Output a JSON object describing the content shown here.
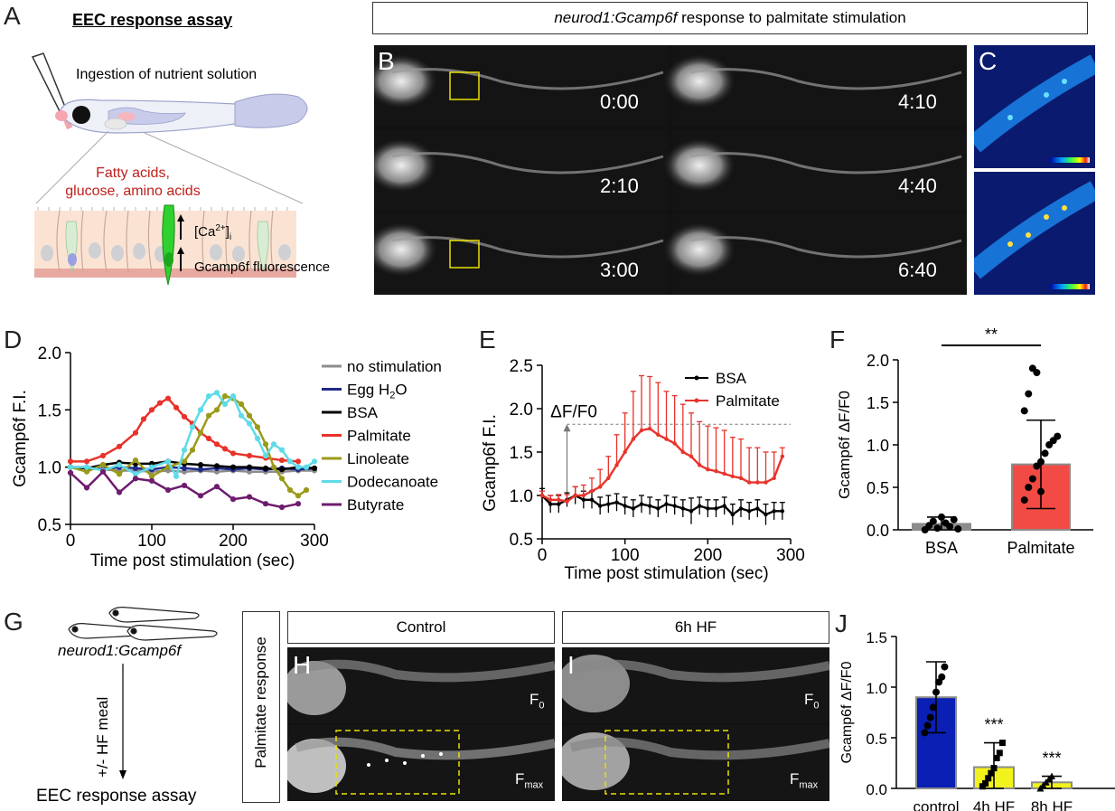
{
  "letters": {
    "a": "A",
    "b": "B",
    "c": "C",
    "d": "D",
    "e": "E",
    "f": "F",
    "g": "G",
    "h": "H",
    "i": "I",
    "j": "J"
  },
  "panelA": {
    "title": "EEC response assay",
    "ingestion": "Ingestion of nutrient solution",
    "nutrients_line1": "Fatty acids,",
    "nutrients_line2": "glucose, amino acids",
    "calcium": "[Ca",
    "calcium_sup": "2+",
    "calcium_end": "]",
    "calcium_sub": "i",
    "gcamp_fluor": "Gcamp6f fluorescence"
  },
  "panelB": {
    "header_italic": "neurod1:Gcamp6f",
    "header_rest": " response to palmitate stimulation",
    "times": [
      "0:00",
      "4:10",
      "2:10",
      "4:40",
      "3:00",
      "6:40"
    ]
  },
  "panelD": {
    "chart_data": {
      "type": "line",
      "xlabel": "Time post stimulation (sec)",
      "ylabel": "Gcamp6f  F.I.",
      "xlim": [
        0,
        300
      ],
      "ylim": [
        0.5,
        2.0
      ],
      "xticks": [
        0,
        100,
        200,
        300
      ],
      "yticks": [
        0.5,
        1.0,
        1.5,
        2.0
      ],
      "legend_position": "right",
      "series": [
        {
          "name": "no stimulation",
          "color": "#8c8c8c",
          "x": [
            0,
            20,
            40,
            60,
            80,
            100,
            120,
            140,
            160,
            180,
            200,
            220,
            240,
            260,
            280,
            300
          ],
          "y": [
            1.0,
            0.99,
            0.98,
            0.97,
            0.97,
            0.96,
            0.97,
            0.96,
            0.97,
            0.96,
            0.97,
            0.96,
            0.96,
            0.96,
            0.97,
            0.97
          ]
        },
        {
          "name": "Egg H2O",
          "color": "#1f2a8a",
          "x": [
            0,
            20,
            40,
            60,
            80,
            100,
            120,
            140,
            160,
            180,
            200,
            220,
            240,
            260,
            280,
            300
          ],
          "y": [
            1.0,
            1.0,
            0.98,
            1.0,
            0.99,
            0.98,
            1.0,
            0.99,
            0.98,
            0.99,
            0.98,
            0.99,
            0.98,
            0.99,
            0.98,
            0.99
          ]
        },
        {
          "name": "BSA",
          "color": "#000000",
          "x": [
            0,
            20,
            40,
            60,
            80,
            100,
            120,
            140,
            160,
            180,
            200,
            220,
            240,
            260,
            280,
            300
          ],
          "y": [
            1.0,
            0.99,
            1.02,
            1.04,
            1.03,
            1.03,
            1.05,
            1.03,
            1.02,
            1.01,
            1.0,
            1.0,
            0.99,
            0.98,
            1.0,
            0.99
          ]
        },
        {
          "name": "Palmitate",
          "color": "#e8332b",
          "x": [
            0,
            20,
            40,
            60,
            80,
            90,
            100,
            110,
            120,
            130,
            140,
            150,
            160,
            170,
            180,
            190,
            200,
            220,
            240,
            260,
            280
          ],
          "y": [
            1.05,
            1.05,
            1.1,
            1.18,
            1.3,
            1.42,
            1.5,
            1.56,
            1.6,
            1.52,
            1.44,
            1.38,
            1.3,
            1.25,
            1.2,
            1.16,
            1.12,
            1.1,
            1.08,
            1.06,
            1.05
          ]
        },
        {
          "name": "Linoleate",
          "color": "#9a9a1a",
          "x": [
            0,
            20,
            40,
            60,
            80,
            100,
            120,
            140,
            150,
            160,
            170,
            180,
            190,
            200,
            210,
            220,
            230,
            240,
            250,
            260,
            270,
            280,
            290
          ],
          "y": [
            1.0,
            0.96,
            1.02,
            0.94,
            1.06,
            0.92,
            1.0,
            1.05,
            1.15,
            1.3,
            1.45,
            1.5,
            1.62,
            1.6,
            1.55,
            1.45,
            1.35,
            1.2,
            1.0,
            0.9,
            0.8,
            0.75,
            0.8
          ]
        },
        {
          "name": "Dodecanoate",
          "color": "#5fdbe8",
          "x": [
            0,
            20,
            40,
            60,
            80,
            100,
            120,
            130,
            140,
            150,
            160,
            170,
            180,
            190,
            200,
            210,
            220,
            230,
            240,
            250,
            260,
            270,
            280,
            290,
            300
          ],
          "y": [
            1.0,
            1.0,
            0.97,
            1.02,
            0.94,
            1.0,
            1.05,
            0.92,
            1.15,
            1.35,
            1.5,
            1.62,
            1.65,
            1.55,
            1.62,
            1.45,
            1.38,
            1.25,
            1.1,
            1.2,
            1.15,
            1.05,
            1.0,
            1.0,
            1.05
          ]
        },
        {
          "name": "Butyrate",
          "color": "#6e1c6e",
          "x": [
            0,
            20,
            40,
            60,
            80,
            100,
            120,
            140,
            160,
            180,
            200,
            220,
            240,
            260,
            280
          ],
          "y": [
            0.95,
            0.82,
            0.96,
            0.78,
            0.9,
            0.88,
            0.8,
            0.84,
            0.75,
            0.83,
            0.72,
            0.74,
            0.68,
            0.65,
            0.68
          ]
        }
      ]
    }
  },
  "panelE": {
    "chart_data": {
      "type": "line",
      "xlabel": "Time post stimulation (sec)",
      "ylabel": "Gcamp6f F.I.",
      "xlim": [
        0,
        300
      ],
      "ylim": [
        0.5,
        2.5
      ],
      "xticks": [
        0,
        100,
        200,
        300
      ],
      "yticks": [
        0.5,
        1.0,
        1.5,
        2.0,
        2.5
      ],
      "annotation": "ΔF/F0",
      "legend_position": "top-right",
      "series": [
        {
          "name": "BSA",
          "color": "#000000",
          "x": [
            0,
            10,
            20,
            30,
            40,
            50,
            60,
            70,
            80,
            90,
            100,
            110,
            120,
            130,
            140,
            150,
            160,
            170,
            180,
            190,
            200,
            210,
            220,
            230,
            240,
            250,
            260,
            270,
            280,
            290
          ],
          "y": [
            1.0,
            0.9,
            0.9,
            0.95,
            1.0,
            0.95,
            0.95,
            0.88,
            0.9,
            0.92,
            0.88,
            0.85,
            0.9,
            0.88,
            0.85,
            0.9,
            0.88,
            0.85,
            0.82,
            0.88,
            0.85,
            0.85,
            0.88,
            0.78,
            0.85,
            0.82,
            0.85,
            0.78,
            0.82,
            0.82
          ],
          "err": [
            0.08,
            0.1,
            0.1,
            0.08,
            0.1,
            0.1,
            0.1,
            0.1,
            0.1,
            0.1,
            0.1,
            0.1,
            0.1,
            0.1,
            0.1,
            0.1,
            0.1,
            0.1,
            0.15,
            0.1,
            0.1,
            0.1,
            0.1,
            0.12,
            0.1,
            0.1,
            0.1,
            0.12,
            0.1,
            0.1
          ]
        },
        {
          "name": "Palmitate",
          "color": "#e8332b",
          "x": [
            0,
            10,
            20,
            30,
            40,
            50,
            60,
            70,
            80,
            90,
            100,
            110,
            120,
            130,
            140,
            150,
            160,
            170,
            180,
            190,
            200,
            210,
            220,
            230,
            240,
            250,
            260,
            270,
            280,
            290
          ],
          "y": [
            1.0,
            0.95,
            0.95,
            0.93,
            1.0,
            1.0,
            1.05,
            1.1,
            1.2,
            1.35,
            1.5,
            1.65,
            1.75,
            1.77,
            1.7,
            1.65,
            1.6,
            1.5,
            1.45,
            1.35,
            1.3,
            1.28,
            1.25,
            1.22,
            1.2,
            1.15,
            1.15,
            1.15,
            1.2,
            1.45
          ],
          "err": [
            0.05,
            0.05,
            0.06,
            0.08,
            0.1,
            0.12,
            0.15,
            0.2,
            0.25,
            0.35,
            0.45,
            0.55,
            0.63,
            0.6,
            0.6,
            0.55,
            0.55,
            0.55,
            0.5,
            0.5,
            0.5,
            0.5,
            0.5,
            0.45,
            0.45,
            0.4,
            0.4,
            0.35,
            0.3,
            0.1
          ]
        }
      ]
    }
  },
  "panelF": {
    "chart_data": {
      "type": "bar",
      "categories": [
        "BSA",
        "Palmitate"
      ],
      "values": [
        0.07,
        0.77
      ],
      "sd": [
        0.08,
        0.52
      ],
      "colors": [
        "#8c8c8c",
        "#f24a44"
      ],
      "points": [
        [
          0.0,
          0.05,
          0.1,
          0.02,
          0.15,
          0.08,
          0.04,
          0.12,
          0.01
        ],
        [
          0.35,
          0.5,
          0.6,
          0.75,
          0.8,
          0.9,
          1.0,
          1.05,
          1.1,
          1.4,
          1.6,
          1.9,
          1.85,
          0.45
        ]
      ],
      "ylabel": "Gcamp6f  ΔF/F0",
      "ylim": [
        0,
        2.0
      ],
      "yticks": [
        0.0,
        0.5,
        1.0,
        1.5,
        2.0
      ],
      "significance": "**"
    }
  },
  "panelG": {
    "fish_label": "neurod1:Gcamp6f",
    "meal": "+/- HF meal",
    "assay": "EEC response assay"
  },
  "panelHI": {
    "side_label": "Palmitate response",
    "control": "Control",
    "hf6": "6h HF",
    "f0": "F",
    "f0_sub": "0",
    "fmax": "F",
    "fmax_sub": "max"
  },
  "panelJ": {
    "chart_data": {
      "type": "bar",
      "categories": [
        "control",
        "4h HF",
        "8h HF"
      ],
      "values": [
        0.9,
        0.21,
        0.06
      ],
      "sd": [
        0.35,
        0.24,
        0.06
      ],
      "colors": [
        "#0a1fb4",
        "#f2f21c",
        "#f2f21c"
      ],
      "points": [
        [
          0.55,
          0.62,
          0.7,
          0.8,
          0.95,
          1.05,
          1.1,
          1.2
        ],
        [
          0.02,
          0.05,
          0.1,
          0.15,
          0.2,
          0.3,
          0.35,
          0.45
        ],
        [
          0.0,
          0.03,
          0.06,
          0.09,
          0.12
        ]
      ],
      "ylabel": "Gcamp6f ΔF/F0",
      "ylim": [
        0,
        1.5
      ],
      "yticks": [
        0.0,
        0.5,
        1.0,
        1.5
      ],
      "significance": [
        "",
        "***",
        "***"
      ]
    }
  }
}
